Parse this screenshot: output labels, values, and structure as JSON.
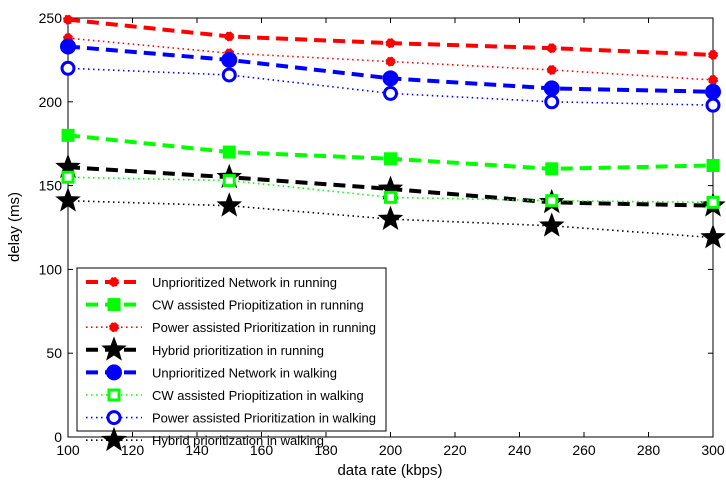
{
  "chart_data": {
    "type": "line",
    "xlabel": "data rate (kbps)",
    "ylabel": "delay (ms)",
    "xlim": [
      100,
      300
    ],
    "ylim": [
      0,
      250
    ],
    "xticks": [
      "100",
      "120",
      "140",
      "160",
      "180",
      "200",
      "220",
      "240",
      "260",
      "280",
      "300"
    ],
    "yticks": [
      "0",
      "50",
      "100",
      "150",
      "200",
      "250"
    ],
    "grid": false,
    "legend_position": "bottom-left",
    "x": [
      100,
      150,
      200,
      250,
      300
    ],
    "series": [
      {
        "name": "Unprioritized Network in running",
        "values": [
          249,
          239,
          235,
          232,
          228
        ],
        "color": "#ff0000",
        "line": "dashed-thick",
        "marker": "dot-small"
      },
      {
        "name": "CW assisted Priopitization in running",
        "values": [
          180,
          170,
          166,
          160,
          162
        ],
        "color": "#00ff00",
        "line": "dashed-thick",
        "marker": "square"
      },
      {
        "name": "Power assisted Prioritization in running",
        "values": [
          238,
          229,
          224,
          219,
          213
        ],
        "color": "#ff0000",
        "line": "dotted",
        "marker": "dot-small"
      },
      {
        "name": "Hybrid prioritization in running",
        "values": [
          161,
          155,
          148,
          140,
          138
        ],
        "color": "#000000",
        "line": "dashed-thick",
        "marker": "star"
      },
      {
        "name": "Unprioritized Network in walking",
        "values": [
          233,
          225,
          214,
          208,
          206
        ],
        "color": "#0000ff",
        "line": "dashed-thick",
        "marker": "circle"
      },
      {
        "name": "CW assisted Priopitization in walking",
        "values": [
          155,
          153,
          143,
          141,
          140
        ],
        "color": "#00ff00",
        "line": "dotted",
        "marker": "square-open"
      },
      {
        "name": "Power assisted Prioritization in walking",
        "values": [
          220,
          216,
          205,
          200,
          198
        ],
        "color": "#0000ff",
        "line": "dotted",
        "marker": "circle-open"
      },
      {
        "name": "Hybrid prioritization in walking",
        "values": [
          141,
          138,
          130,
          126,
          119
        ],
        "color": "#000000",
        "line": "dotted",
        "marker": "star"
      }
    ]
  }
}
